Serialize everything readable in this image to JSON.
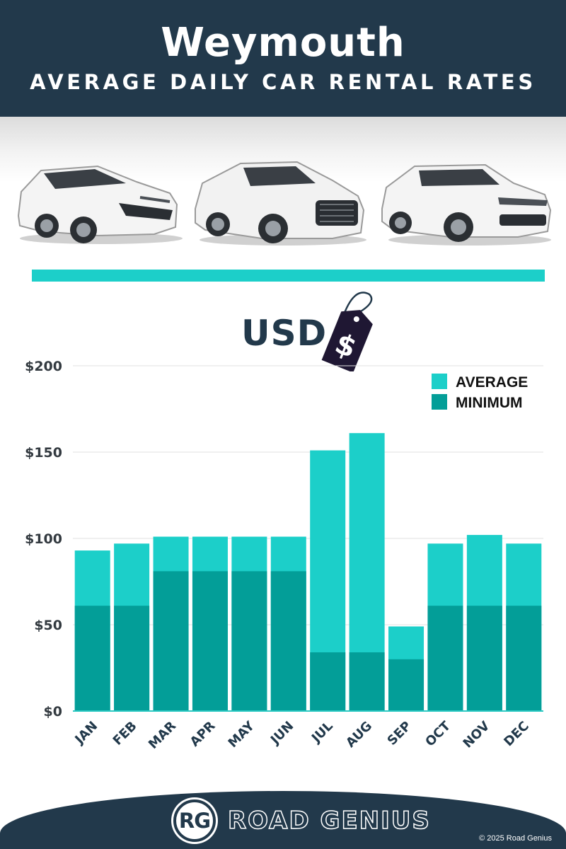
{
  "header": {
    "title": "Weymouth",
    "subtitle": "AVERAGE DAILY CAR RENTAL RATES"
  },
  "currency": {
    "label": "USD",
    "tag_symbol": "$"
  },
  "colors": {
    "navy": "#22394b",
    "average": "#1ccfc9",
    "minimum": "#039e98",
    "band": "#1ccfc9"
  },
  "chart_data": {
    "type": "bar",
    "categories": [
      "JAN",
      "FEB",
      "MAR",
      "APR",
      "MAY",
      "JUN",
      "JUL",
      "AUG",
      "SEP",
      "OCT",
      "NOV",
      "DEC"
    ],
    "series": [
      {
        "name": "AVERAGE",
        "values": [
          93,
          97,
          101,
          101,
          101,
          101,
          151,
          161,
          49,
          97,
          102,
          97
        ]
      },
      {
        "name": "MINIMUM",
        "values": [
          61,
          61,
          81,
          81,
          81,
          81,
          34,
          34,
          30,
          61,
          61,
          61
        ]
      }
    ],
    "y_ticks": [
      "$0",
      "$50",
      "$100",
      "$150",
      "$200"
    ],
    "ylim": [
      0,
      200
    ],
    "grid": true,
    "legend": "top-right",
    "overlay": true
  },
  "footer": {
    "logo": "RG",
    "brand": "ROAD GENIUS",
    "copyright": "© 2025 Road Genius"
  }
}
